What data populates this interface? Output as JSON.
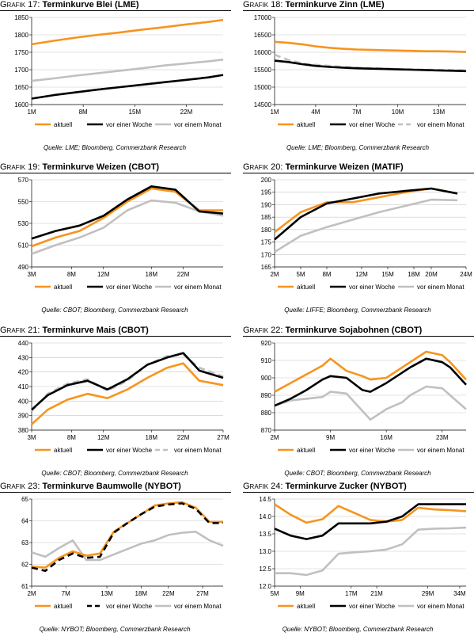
{
  "colors": {
    "aktuell": "#f7941d",
    "woche": "#000000",
    "monat": "#c0c0c0",
    "grid": "#c8c8c8"
  },
  "legend_labels": {
    "aktuell": "aktuell",
    "woche": "vor einer Woche",
    "monat": "vor einem Monat"
  },
  "chart_data": [
    {
      "type": "line",
      "label_prefix": "Grafik 17:",
      "title": "Terminkurve Blei (LME)",
      "source": "Quelle: LME; Bloomberg, Commerzbank Research",
      "ylim": [
        1600,
        1850
      ],
      "yticks": [
        1600,
        1650,
        1700,
        1750,
        1800,
        1850
      ],
      "xlim": [
        1,
        27
      ],
      "xticks": [
        1,
        8,
        15,
        22
      ],
      "xtick_labels": [
        "1M",
        "8M",
        "15M",
        "22M"
      ],
      "grid": true,
      "legend": "bottom",
      "series": [
        {
          "key": "aktuell",
          "name": "aktuell",
          "style": "solid",
          "x": [
            1,
            4,
            7,
            10,
            13,
            16,
            19,
            22,
            25,
            27
          ],
          "y": [
            1773,
            1783,
            1792,
            1800,
            1807,
            1815,
            1822,
            1830,
            1837,
            1843
          ]
        },
        {
          "key": "woche",
          "name": "vor einer Woche",
          "style": "solid",
          "x": [
            1,
            4,
            7,
            10,
            13,
            16,
            19,
            22,
            25,
            27
          ],
          "y": [
            1617,
            1627,
            1635,
            1643,
            1650,
            1657,
            1664,
            1671,
            1678,
            1685
          ]
        },
        {
          "key": "monat",
          "name": "vor einem Monat",
          "style": "solid",
          "x": [
            1,
            4,
            7,
            10,
            13,
            16,
            19,
            22,
            25,
            27
          ],
          "y": [
            1668,
            1675,
            1683,
            1690,
            1697,
            1704,
            1712,
            1718,
            1724,
            1729
          ]
        }
      ]
    },
    {
      "type": "line",
      "label_prefix": "Grafik 18:",
      "title": "Terminkurve Zinn (LME)",
      "source": "Quelle: LME; Bloomberg, Commerzbank Research",
      "ylim": [
        14500,
        17000
      ],
      "yticks": [
        14500,
        15000,
        15500,
        16000,
        16500,
        17000
      ],
      "xlim": [
        1,
        15
      ],
      "xticks": [
        1,
        4,
        7,
        10,
        13
      ],
      "xtick_labels": [
        "1M",
        "4M",
        "7M",
        "10M",
        "13M"
      ],
      "grid": true,
      "legend": "bottom",
      "series": [
        {
          "key": "aktuell",
          "name": "aktuell",
          "style": "solid",
          "x": [
            1,
            2,
            3,
            4,
            5,
            6,
            7,
            8,
            9,
            10,
            11,
            12,
            13,
            14,
            15
          ],
          "y": [
            16300,
            16270,
            16230,
            16170,
            16130,
            16100,
            16080,
            16070,
            16060,
            16050,
            16040,
            16030,
            16030,
            16020,
            16010
          ]
        },
        {
          "key": "woche",
          "name": "vor einer Woche",
          "style": "solid",
          "x": [
            1,
            2,
            3,
            4,
            5,
            6,
            7,
            8,
            9,
            10,
            11,
            12,
            13,
            14,
            15
          ],
          "y": [
            15760,
            15720,
            15660,
            15610,
            15580,
            15560,
            15540,
            15530,
            15520,
            15510,
            15500,
            15490,
            15480,
            15470,
            15460
          ]
        },
        {
          "key": "monat",
          "name": "vor einem Monat",
          "style": "dashed",
          "x": [
            1,
            2,
            3,
            4,
            5,
            6,
            7,
            8,
            9,
            10,
            11,
            12,
            13,
            14,
            15
          ],
          "y": [
            15930,
            15780,
            15680,
            15640,
            15610,
            15580,
            15560,
            15545,
            15530,
            15520,
            15510,
            15500,
            15495,
            15490,
            15480
          ]
        }
      ]
    },
    {
      "type": "line",
      "label_prefix": "Grafik 19:",
      "title": "Terminkurve Weizen (CBOT)",
      "source": "Quelle: CBOT; Bloomberg, Commerzbank Research",
      "ylim": [
        490,
        570
      ],
      "yticks": [
        490,
        510,
        530,
        550,
        570
      ],
      "xlim": [
        3,
        27
      ],
      "xticks": [
        3,
        8,
        12,
        18,
        22
      ],
      "xtick_labels": [
        "3M",
        "8M",
        "12M",
        "18M",
        "22M"
      ],
      "grid": true,
      "legend": "bottom",
      "series": [
        {
          "key": "aktuell",
          "name": "aktuell",
          "style": "solid",
          "x": [
            3,
            6,
            9,
            12,
            15,
            18,
            21,
            24,
            27
          ],
          "y": [
            509,
            517,
            523,
            535,
            550,
            562,
            559,
            542,
            542
          ]
        },
        {
          "key": "woche",
          "name": "vor einer Woche",
          "style": "solid",
          "x": [
            3,
            6,
            9,
            12,
            15,
            18,
            21,
            24,
            27
          ],
          "y": [
            516,
            523,
            528,
            537,
            552,
            564,
            561,
            541,
            539
          ]
        },
        {
          "key": "monat",
          "name": "vor einem Monat",
          "style": "solid",
          "x": [
            3,
            6,
            9,
            12,
            15,
            18,
            21,
            24,
            27
          ],
          "y": [
            502,
            510,
            517,
            526,
            542,
            551,
            549,
            541,
            537
          ]
        }
      ]
    },
    {
      "type": "line",
      "label_prefix": "Grafik 20:",
      "title": "Terminkurve Weizen (MATIF)",
      "source": "Quelle: LIFFE; Bloomberg, Commerzbank Research",
      "ylim": [
        165,
        200
      ],
      "yticks": [
        165,
        170,
        175,
        180,
        185,
        190,
        195,
        200
      ],
      "xlim": [
        2,
        24
      ],
      "xticks": [
        2,
        5,
        8,
        12,
        15,
        18,
        20,
        24
      ],
      "xtick_labels": [
        "2M",
        "5M",
        "8M",
        "12M",
        "15M",
        "18M",
        "20M",
        "24M"
      ],
      "grid": true,
      "legend": "bottom",
      "series": [
        {
          "key": "aktuell",
          "name": "aktuell",
          "style": "solid",
          "x": [
            2,
            5,
            8,
            11,
            14,
            17,
            20,
            23
          ],
          "y": [
            179,
            187,
            191,
            191,
            193,
            195,
            196.5,
            194.5
          ]
        },
        {
          "key": "woche",
          "name": "vor einer Woche",
          "style": "solid",
          "x": [
            2,
            5,
            8,
            11,
            14,
            17,
            20,
            23
          ],
          "y": [
            176,
            185,
            190.5,
            192.5,
            194.5,
            195.5,
            196.5,
            194.5
          ]
        },
        {
          "key": "monat",
          "name": "vor einem Monat",
          "style": "solid",
          "x": [
            2,
            5,
            8,
            11,
            14,
            17,
            20,
            23
          ],
          "y": [
            171,
            177.5,
            181,
            184,
            187,
            189.5,
            192,
            191.8
          ]
        }
      ]
    },
    {
      "type": "line",
      "label_prefix": "Grafik 21:",
      "title": "Terminkurve Mais (CBOT)",
      "source": "Quelle: CBOT; Bloomberg, Commerzbank Research",
      "ylim": [
        380,
        440
      ],
      "yticks": [
        380,
        390,
        400,
        410,
        420,
        430,
        440
      ],
      "xlim": [
        3,
        27
      ],
      "xticks": [
        3,
        8,
        12,
        18,
        22,
        27
      ],
      "xtick_labels": [
        "3M",
        "8M",
        "12M",
        "18M",
        "22M",
        "27M"
      ],
      "grid": true,
      "legend": "bottom",
      "series": [
        {
          "key": "aktuell",
          "name": "aktuell",
          "style": "solid",
          "x": [
            3,
            5,
            7.5,
            10,
            12.5,
            15,
            17.5,
            20,
            22,
            24,
            27
          ],
          "y": [
            384,
            394,
            401,
            405,
            402,
            408,
            416,
            423,
            426,
            414,
            411
          ]
        },
        {
          "key": "woche",
          "name": "vor einer Woche",
          "style": "solid",
          "x": [
            3,
            5,
            7.5,
            10,
            12.5,
            15,
            17.5,
            20,
            22,
            24,
            27
          ],
          "y": [
            394,
            404,
            411,
            414,
            408,
            415,
            425,
            430,
            433,
            421,
            416
          ]
        },
        {
          "key": "monat",
          "name": "vor einem Monat",
          "style": "dashed",
          "x": [
            3,
            5,
            7.5,
            10,
            12.5,
            15,
            17.5,
            20,
            22,
            24,
            27
          ],
          "y": [
            393,
            405,
            412,
            415,
            407,
            414,
            425,
            431,
            432,
            423,
            417
          ]
        }
      ]
    },
    {
      "type": "line",
      "label_prefix": "Grafik 22:",
      "title": "Terminkurve Sojabohnen (CBOT)",
      "source": "Quelle: CBOT; Bloomberg, Commerzbank Research",
      "ylim": [
        870,
        920
      ],
      "yticks": [
        870,
        880,
        890,
        900,
        910,
        920
      ],
      "xlim": [
        2,
        26
      ],
      "xticks": [
        2,
        9,
        16,
        23
      ],
      "xtick_labels": [
        "2M",
        "9M",
        "16M",
        "23M"
      ],
      "grid": true,
      "legend": "bottom",
      "series": [
        {
          "key": "aktuell",
          "name": "aktuell",
          "style": "solid",
          "x": [
            2,
            4,
            6,
            8,
            9,
            11,
            13,
            14,
            16,
            18,
            19,
            21,
            23,
            24,
            26
          ],
          "y": [
            892,
            897,
            902,
            907,
            911,
            904,
            901,
            899,
            900,
            906,
            909,
            915,
            913,
            909,
            899
          ]
        },
        {
          "key": "woche",
          "name": "vor einer Woche",
          "style": "solid",
          "x": [
            2,
            4,
            6,
            8,
            9,
            11,
            13,
            14,
            16,
            18,
            19,
            21,
            23,
            24,
            26
          ],
          "y": [
            884,
            888,
            893,
            899,
            901,
            900,
            893,
            892,
            897,
            903,
            906,
            911,
            909,
            906,
            896
          ]
        },
        {
          "key": "monat",
          "name": "vor einem Monat",
          "style": "solid",
          "x": [
            2,
            4,
            6,
            8,
            9,
            11,
            13,
            14,
            16,
            18,
            19,
            21,
            23,
            24,
            26
          ],
          "y": [
            884,
            887,
            888,
            889,
            892,
            891,
            881,
            876,
            882,
            886,
            890,
            895,
            894,
            890,
            882
          ]
        }
      ]
    },
    {
      "type": "line",
      "label_prefix": "Grafik 23:",
      "title": "Terminkurve Baumwolle (NYBOT)",
      "source": "Quelle: NYBOT; Bloomberg, Commerzbank Research",
      "ylim": [
        61,
        65
      ],
      "yticks": [
        61,
        62,
        63,
        64,
        65
      ],
      "xlim": [
        2,
        30
      ],
      "xticks": [
        2,
        7,
        13,
        18,
        22,
        27
      ],
      "xtick_labels": [
        "2M",
        "7M",
        "13M",
        "18M",
        "22M",
        "27M"
      ],
      "grid": true,
      "legend": "bottom",
      "series": [
        {
          "key": "aktuell",
          "name": "aktuell",
          "style": "solid",
          "x": [
            2,
            4,
            6,
            8,
            10,
            12,
            14,
            16,
            18,
            20,
            22,
            24,
            26,
            28,
            30
          ],
          "y": [
            61.9,
            61.85,
            62.3,
            62.6,
            62.4,
            62.5,
            63.5,
            63.9,
            64.3,
            64.7,
            64.8,
            64.85,
            64.6,
            63.95,
            63.95
          ]
        },
        {
          "key": "woche",
          "name": "vor einer Woche",
          "style": "dashed",
          "x": [
            2,
            4,
            6,
            8,
            10,
            12,
            14,
            16,
            18,
            20,
            22,
            24,
            26,
            28,
            30
          ],
          "y": [
            61.85,
            61.7,
            62.2,
            62.5,
            62.3,
            62.35,
            63.45,
            63.9,
            64.3,
            64.65,
            64.75,
            64.8,
            64.55,
            63.9,
            63.9
          ]
        },
        {
          "key": "monat",
          "name": "vor einem Monat",
          "style": "solid",
          "x": [
            2,
            4,
            6,
            8,
            10,
            12,
            14,
            16,
            18,
            20,
            22,
            24,
            26,
            28,
            30
          ],
          "y": [
            62.55,
            62.35,
            62.75,
            63.1,
            62.2,
            62.2,
            62.45,
            62.7,
            62.95,
            63.1,
            63.35,
            63.45,
            63.5,
            63.1,
            62.85
          ]
        }
      ]
    },
    {
      "type": "line",
      "label_prefix": "Grafik 24:",
      "title": "Terminkurve Zucker (NYBOT)",
      "source": "Quelle: NYBOT; Bloomberg, Commerzbank Research",
      "ylim": [
        12.0,
        14.5
      ],
      "yticks": [
        12.0,
        12.5,
        13.0,
        13.5,
        14.0,
        14.5
      ],
      "xlim": [
        5,
        35
      ],
      "xticks": [
        5,
        9,
        17,
        21,
        29,
        34
      ],
      "xtick_labels": [
        "5M",
        "9M",
        "17M",
        "21M",
        "29M",
        "34M"
      ],
      "grid": true,
      "legend": "bottom",
      "series": [
        {
          "key": "aktuell",
          "name": "aktuell",
          "style": "solid",
          "x": [
            5,
            7.5,
            10,
            12.5,
            15,
            17.5,
            20,
            22.5,
            25,
            27.5,
            30,
            32.5,
            35
          ],
          "y": [
            14.35,
            14.05,
            13.82,
            13.92,
            14.3,
            14.1,
            13.9,
            13.85,
            13.9,
            14.25,
            14.2,
            14.18,
            14.15
          ]
        },
        {
          "key": "woche",
          "name": "vor einer Woche",
          "style": "solid",
          "x": [
            5,
            7.5,
            10,
            12.5,
            15,
            17.5,
            20,
            22.5,
            25,
            27.5,
            30,
            32.5,
            35
          ],
          "y": [
            13.65,
            13.45,
            13.35,
            13.45,
            13.8,
            13.8,
            13.8,
            13.85,
            14.0,
            14.35,
            14.35,
            14.35,
            14.35
          ]
        },
        {
          "key": "monat",
          "name": "vor einem Monat",
          "style": "solid",
          "x": [
            5,
            7.5,
            10,
            12.5,
            15,
            17.5,
            20,
            22.5,
            25,
            27.5,
            30,
            32.5,
            35
          ],
          "y": [
            12.37,
            12.37,
            12.32,
            12.45,
            12.93,
            12.97,
            13.0,
            13.05,
            13.2,
            13.62,
            13.65,
            13.66,
            13.68
          ]
        }
      ]
    }
  ]
}
